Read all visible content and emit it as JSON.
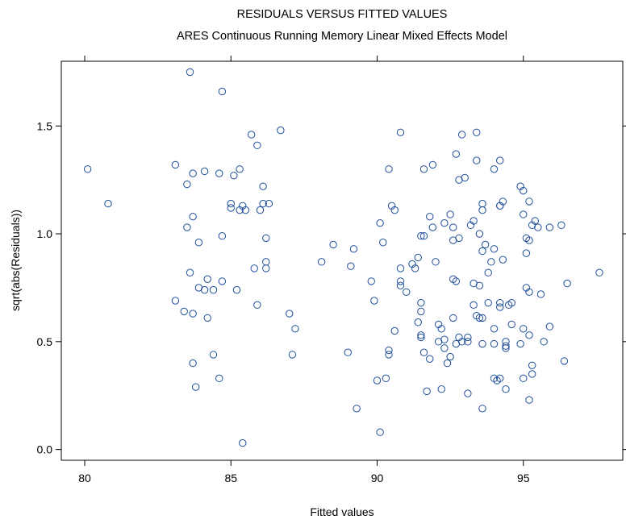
{
  "chart_data": {
    "type": "scatter",
    "title": "RESIDUALS VERSUS FITTED VALUES",
    "subtitle": "ARES Continuous Running Memory Linear Mixed Effects Model",
    "xlabel": "Fitted values",
    "ylabel": "sqrt(abs(Residuals))",
    "xlim": [
      79.2,
      98.4
    ],
    "ylim": [
      -0.05,
      1.8
    ],
    "xticks": [
      80,
      85,
      90,
      95
    ],
    "yticks": [
      0.0,
      0.5,
      1.0,
      1.5
    ],
    "xtick_labels": [
      "80",
      "85",
      "90",
      "95"
    ],
    "ytick_labels": [
      "0.0",
      "0.5",
      "1.0",
      "1.5"
    ],
    "grid": false,
    "legend": "none",
    "marker": "open-circle",
    "point_color": "#1f4e9a",
    "series": [
      {
        "points": [
          [
            80.1,
            1.3
          ],
          [
            80.8,
            1.14
          ],
          [
            83.1,
            1.32
          ],
          [
            83.1,
            0.69
          ],
          [
            83.4,
            0.64
          ],
          [
            83.5,
            1.23
          ],
          [
            83.5,
            1.03
          ],
          [
            83.6,
            1.75
          ],
          [
            83.6,
            0.82
          ],
          [
            83.7,
            1.28
          ],
          [
            83.7,
            1.08
          ],
          [
            83.7,
            0.63
          ],
          [
            83.7,
            0.4
          ],
          [
            83.8,
            0.29
          ],
          [
            83.9,
            0.96
          ],
          [
            83.9,
            0.75
          ],
          [
            84.1,
            0.74
          ],
          [
            84.1,
            1.29
          ],
          [
            84.2,
            0.79
          ],
          [
            84.2,
            0.61
          ],
          [
            84.4,
            0.44
          ],
          [
            84.4,
            0.74
          ],
          [
            84.6,
            1.28
          ],
          [
            84.6,
            0.33
          ],
          [
            84.7,
            1.66
          ],
          [
            84.7,
            0.99
          ],
          [
            84.7,
            0.78
          ],
          [
            85.0,
            1.14
          ],
          [
            85.0,
            1.12
          ],
          [
            85.1,
            1.27
          ],
          [
            85.2,
            0.74
          ],
          [
            85.3,
            1.3
          ],
          [
            85.3,
            1.11
          ],
          [
            85.4,
            1.13
          ],
          [
            85.4,
            0.03
          ],
          [
            85.5,
            1.11
          ],
          [
            85.7,
            1.46
          ],
          [
            85.8,
            0.84
          ],
          [
            85.9,
            1.41
          ],
          [
            85.9,
            0.67
          ],
          [
            86.0,
            1.11
          ],
          [
            86.1,
            1.22
          ],
          [
            86.1,
            1.14
          ],
          [
            86.2,
            0.87
          ],
          [
            86.2,
            0.98
          ],
          [
            86.2,
            0.84
          ],
          [
            86.3,
            1.14
          ],
          [
            86.7,
            1.48
          ],
          [
            87.0,
            0.63
          ],
          [
            87.1,
            0.44
          ],
          [
            87.2,
            0.56
          ],
          [
            88.1,
            0.87
          ],
          [
            88.5,
            0.95
          ],
          [
            89.0,
            0.45
          ],
          [
            89.1,
            0.85
          ],
          [
            89.2,
            0.93
          ],
          [
            89.3,
            0.19
          ],
          [
            89.8,
            0.78
          ],
          [
            89.9,
            0.69
          ],
          [
            90.0,
            0.32
          ],
          [
            90.1,
            1.05
          ],
          [
            90.1,
            0.08
          ],
          [
            90.2,
            0.96
          ],
          [
            90.3,
            0.33
          ],
          [
            90.4,
            1.3
          ],
          [
            90.4,
            0.46
          ],
          [
            90.4,
            0.44
          ],
          [
            90.5,
            1.13
          ],
          [
            90.6,
            1.11
          ],
          [
            90.6,
            0.55
          ],
          [
            90.8,
            1.47
          ],
          [
            90.8,
            0.84
          ],
          [
            90.8,
            0.78
          ],
          [
            90.8,
            0.76
          ],
          [
            91.0,
            0.73
          ],
          [
            91.2,
            0.86
          ],
          [
            91.3,
            0.84
          ],
          [
            91.4,
            0.89
          ],
          [
            91.4,
            0.59
          ],
          [
            91.5,
            0.99
          ],
          [
            91.5,
            0.68
          ],
          [
            91.5,
            0.64
          ],
          [
            91.5,
            0.53
          ],
          [
            91.5,
            0.52
          ],
          [
            91.6,
            1.3
          ],
          [
            91.6,
            0.99
          ],
          [
            91.6,
            0.45
          ],
          [
            91.7,
            0.27
          ],
          [
            91.8,
            1.08
          ],
          [
            91.8,
            0.42
          ],
          [
            91.9,
            1.32
          ],
          [
            91.9,
            1.03
          ],
          [
            92.0,
            0.87
          ],
          [
            92.1,
            0.5
          ],
          [
            92.1,
            0.58
          ],
          [
            92.2,
            0.56
          ],
          [
            92.2,
            0.28
          ],
          [
            92.3,
            1.05
          ],
          [
            92.3,
            0.51
          ],
          [
            92.3,
            0.47
          ],
          [
            92.4,
            0.4
          ],
          [
            92.5,
            1.09
          ],
          [
            92.5,
            0.43
          ],
          [
            92.6,
            0.97
          ],
          [
            92.6,
            1.03
          ],
          [
            92.6,
            0.79
          ],
          [
            92.6,
            0.61
          ],
          [
            92.7,
            1.37
          ],
          [
            92.7,
            0.78
          ],
          [
            92.7,
            0.49
          ],
          [
            92.8,
            0.98
          ],
          [
            92.8,
            1.25
          ],
          [
            92.8,
            0.52
          ],
          [
            92.9,
            1.46
          ],
          [
            92.9,
            0.5
          ],
          [
            93.0,
            1.26
          ],
          [
            93.1,
            0.26
          ],
          [
            93.1,
            0.52
          ],
          [
            93.1,
            0.5
          ],
          [
            93.2,
            1.04
          ],
          [
            93.3,
            1.06
          ],
          [
            93.3,
            0.67
          ],
          [
            93.3,
            0.77
          ],
          [
            93.4,
            1.47
          ],
          [
            93.4,
            1.34
          ],
          [
            93.4,
            0.62
          ],
          [
            93.5,
            0.76
          ],
          [
            93.5,
            1.0
          ],
          [
            93.5,
            0.61
          ],
          [
            93.6,
            1.14
          ],
          [
            93.6,
            1.11
          ],
          [
            93.6,
            0.92
          ],
          [
            93.6,
            0.61
          ],
          [
            93.6,
            0.49
          ],
          [
            93.6,
            0.19
          ],
          [
            93.7,
            0.95
          ],
          [
            93.8,
            0.82
          ],
          [
            93.8,
            0.68
          ],
          [
            93.9,
            0.87
          ],
          [
            94.0,
            1.3
          ],
          [
            94.0,
            0.93
          ],
          [
            94.0,
            0.56
          ],
          [
            94.0,
            0.49
          ],
          [
            94.0,
            0.33
          ],
          [
            94.1,
            0.32
          ],
          [
            94.2,
            1.34
          ],
          [
            94.2,
            1.13
          ],
          [
            94.2,
            1.13
          ],
          [
            94.2,
            0.68
          ],
          [
            94.2,
            0.66
          ],
          [
            94.2,
            0.33
          ],
          [
            94.3,
            1.15
          ],
          [
            94.3,
            0.88
          ],
          [
            94.4,
            0.5
          ],
          [
            94.4,
            0.48
          ],
          [
            94.4,
            0.47
          ],
          [
            94.4,
            0.28
          ],
          [
            94.5,
            0.67
          ],
          [
            94.6,
            0.68
          ],
          [
            94.6,
            0.58
          ],
          [
            94.9,
            0.49
          ],
          [
            94.9,
            1.22
          ],
          [
            95.0,
            1.2
          ],
          [
            95.0,
            1.09
          ],
          [
            95.0,
            0.56
          ],
          [
            95.0,
            0.33
          ],
          [
            95.1,
            0.98
          ],
          [
            95.1,
            0.75
          ],
          [
            95.1,
            0.91
          ],
          [
            95.2,
            1.15
          ],
          [
            95.2,
            0.97
          ],
          [
            95.2,
            0.73
          ],
          [
            95.2,
            0.53
          ],
          [
            95.2,
            0.23
          ],
          [
            95.3,
            1.04
          ],
          [
            95.3,
            0.35
          ],
          [
            95.3,
            0.39
          ],
          [
            95.4,
            1.06
          ],
          [
            95.5,
            1.03
          ],
          [
            95.6,
            0.72
          ],
          [
            95.7,
            0.5
          ],
          [
            95.9,
            1.03
          ],
          [
            95.9,
            0.57
          ],
          [
            96.3,
            1.04
          ],
          [
            96.4,
            0.41
          ],
          [
            96.5,
            0.77
          ],
          [
            97.6,
            0.82
          ]
        ]
      }
    ]
  }
}
